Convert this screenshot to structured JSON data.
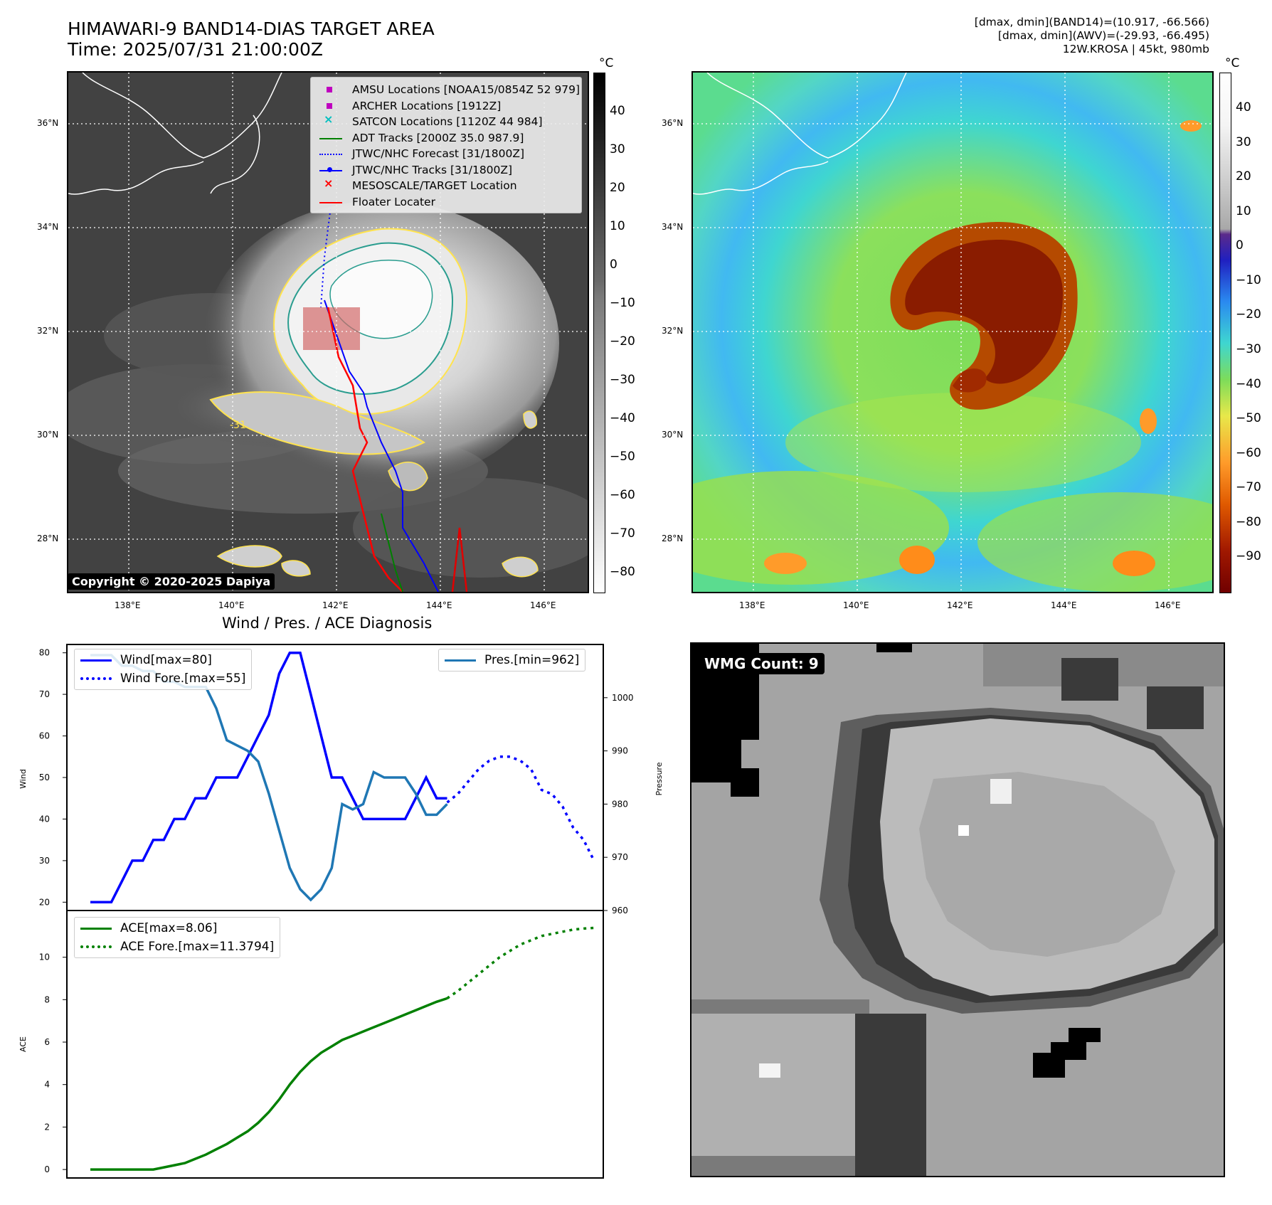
{
  "header": {
    "title_line1": "HIMAWARI-9 BAND14-DIAS TARGET AREA",
    "title_line2": "Time: 2025/07/31 21:00:00Z",
    "info_line1": "[dmax, dmin](BAND14)=(10.917, -66.566)",
    "info_line2": "[dmax, dmin](AWV)=(-29.93, -66.495)",
    "info_line3": "12W.KROSA | 45kt, 980mb"
  },
  "map_axes": {
    "lon_labels": [
      "138°E",
      "140°E",
      "142°E",
      "144°E",
      "146°E"
    ],
    "lat_labels": [
      "36°N",
      "34°N",
      "32°N",
      "30°N",
      "28°N"
    ]
  },
  "ir_panel": {
    "colorbar_unit": "°C",
    "colorbar_ticks": [
      "40",
      "30",
      "20",
      "10",
      "0",
      "−10",
      "−20",
      "−30",
      "−40",
      "−50",
      "−60",
      "−70",
      "−80"
    ],
    "legend": [
      {
        "label": "AMSU Locations [NOAA15/0854Z 52 979]",
        "symbol": "square",
        "color": "#bf00bf"
      },
      {
        "label": "ARCHER Locations [1912Z]",
        "symbol": "square",
        "color": "#bf00bf"
      },
      {
        "label": "SATCON Locations [1120Z 44 984]",
        "symbol": "x",
        "color": "#00bfbf"
      },
      {
        "label": "ADT Tracks [2000Z 35.0 987.9]",
        "symbol": "line",
        "color": "#008000"
      },
      {
        "label": "JTWC/NHC Forecast [31/1800Z]",
        "symbol": "dotted",
        "color": "#0000ff"
      },
      {
        "label": "JTWC/NHC Tracks [31/1800Z]",
        "symbol": "line-dot",
        "color": "#0000ff"
      },
      {
        "label": "MESOSCALE/TARGET Location",
        "symbol": "x",
        "color": "#ff0000"
      },
      {
        "label": "Floater Locater",
        "symbol": "line",
        "color": "#ff0000"
      }
    ],
    "contour_label": "-31",
    "copyright": "Copyright © 2020-2025 Dapiya"
  },
  "wv_panel": {
    "colorbar_unit": "°C",
    "colorbar_ticks": [
      "40",
      "30",
      "20",
      "10",
      "0",
      "−10",
      "−20",
      "−30",
      "−40",
      "−50",
      "−60",
      "−70",
      "−80",
      "−90"
    ]
  },
  "diagnosis": {
    "title": "Wind / Pres. / ACE Diagnosis",
    "wind_axis_label": "Wind",
    "pressure_axis_label": "Pressure",
    "ace_axis_label": "ACE",
    "wind_ticks": [
      "80",
      "70",
      "60",
      "50",
      "40",
      "30",
      "20"
    ],
    "pressure_ticks": [
      "1000",
      "990",
      "980",
      "970",
      "960"
    ],
    "ace_ticks": [
      "10",
      "8",
      "6",
      "4",
      "2",
      "0"
    ],
    "legend_wind": "Wind[max=80]",
    "legend_wind_fore": "Wind Fore.[max=55]",
    "legend_pres": "Pres.[min=962]",
    "legend_ace": "ACE[max=8.06]",
    "legend_ace_fore": "ACE Fore.[max=11.3794]"
  },
  "wmg": {
    "label": "WMG Count: 9"
  },
  "chart_data": [
    {
      "type": "line",
      "title": "Wind / Pres. / ACE Diagnosis",
      "ylabel": "Wind",
      "ylim": [
        18,
        82
      ],
      "series": [
        {
          "name": "Wind[max=80]",
          "color": "#0000ff",
          "style": "solid",
          "x": [
            0,
            1,
            2,
            3,
            4,
            5,
            6,
            7,
            8,
            9,
            10,
            11,
            12,
            13,
            14,
            15,
            16,
            17,
            18,
            19,
            20,
            21,
            22,
            23,
            24,
            25,
            26,
            27,
            28,
            29,
            30,
            31,
            32,
            33,
            34
          ],
          "values": [
            20,
            20,
            20,
            25,
            30,
            30,
            35,
            35,
            40,
            40,
            45,
            45,
            50,
            50,
            50,
            55,
            60,
            65,
            75,
            80,
            80,
            70,
            60,
            50,
            50,
            45,
            40,
            40,
            40,
            40,
            40,
            45,
            50,
            45,
            45
          ]
        },
        {
          "name": "Wind Fore.[max=55]",
          "color": "#0000ff",
          "style": "dotted",
          "x": [
            34,
            35,
            36,
            37,
            38,
            39,
            40,
            41,
            42,
            43,
            44,
            45,
            46,
            47,
            48
          ],
          "values": [
            44,
            46,
            49,
            52,
            54,
            55,
            55,
            54,
            52,
            47,
            46,
            43,
            38,
            35,
            30
          ]
        }
      ]
    },
    {
      "type": "line",
      "ylabel": "Pressure",
      "ylim": [
        960,
        1010
      ],
      "series": [
        {
          "name": "Pres.[min=962]",
          "color": "#1f77b4",
          "style": "solid",
          "x": [
            0,
            1,
            2,
            3,
            4,
            5,
            6,
            7,
            8,
            9,
            10,
            11,
            12,
            13,
            14,
            15,
            16,
            17,
            18,
            19,
            20,
            21,
            22,
            23,
            24,
            25,
            26,
            27,
            28,
            29,
            30,
            31,
            32,
            33,
            34
          ],
          "values": [
            1008,
            1008,
            1008,
            1006,
            1006,
            1005,
            1005,
            1003,
            1003,
            1002,
            1002,
            1002,
            998,
            992,
            991,
            990,
            988,
            982,
            975,
            968,
            964,
            962,
            964,
            968,
            980,
            979,
            980,
            986,
            985,
            985,
            985,
            982,
            978,
            978,
            980
          ]
        }
      ]
    },
    {
      "type": "line",
      "ylabel": "ACE",
      "ylim": [
        -0.4,
        12.2
      ],
      "series": [
        {
          "name": "ACE[max=8.06]",
          "color": "#008000",
          "style": "solid",
          "x": [
            0,
            1,
            2,
            3,
            4,
            5,
            6,
            7,
            8,
            9,
            10,
            11,
            12,
            13,
            14,
            15,
            16,
            17,
            18,
            19,
            20,
            21,
            22,
            23,
            24,
            25,
            26,
            27,
            28,
            29,
            30,
            31,
            32,
            33,
            34
          ],
          "values": [
            0,
            0,
            0,
            0,
            0,
            0,
            0,
            0.1,
            0.2,
            0.3,
            0.5,
            0.7,
            0.95,
            1.2,
            1.5,
            1.8,
            2.2,
            2.7,
            3.3,
            4.0,
            4.6,
            5.1,
            5.5,
            5.8,
            6.1,
            6.3,
            6.5,
            6.7,
            6.9,
            7.1,
            7.3,
            7.5,
            7.7,
            7.9,
            8.06
          ]
        },
        {
          "name": "ACE Fore.[max=11.3794]",
          "color": "#008000",
          "style": "dotted",
          "x": [
            34,
            35,
            36,
            37,
            38,
            39,
            40,
            41,
            42,
            43,
            44,
            45,
            46,
            47,
            48
          ],
          "values": [
            8.06,
            8.4,
            8.8,
            9.2,
            9.6,
            10.0,
            10.3,
            10.6,
            10.8,
            11.0,
            11.1,
            11.2,
            11.3,
            11.35,
            11.38
          ]
        }
      ]
    }
  ]
}
